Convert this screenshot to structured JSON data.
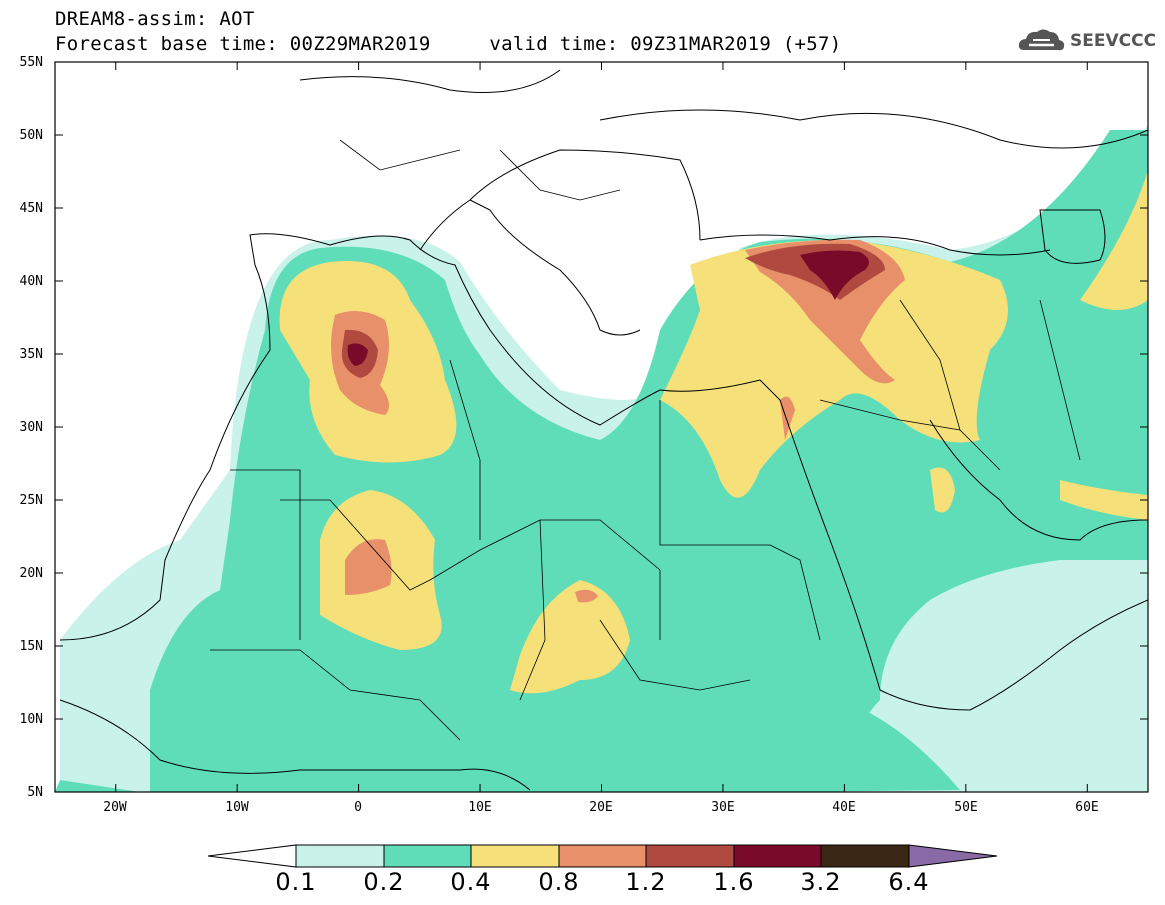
{
  "title": {
    "line1": "DREAM8-assim: AOT",
    "line2": "Forecast base time: 00Z29MAR2019     valid time: 09Z31MAR2019 (+57)"
  },
  "logo": {
    "text": "SEEVCCC",
    "icon": "cloud-logo-icon"
  },
  "axes": {
    "lat_labels": [
      "55N",
      "50N",
      "45N",
      "40N",
      "35N",
      "30N",
      "25N",
      "20N",
      "15N",
      "10N",
      "5N"
    ],
    "lon_labels": [
      "20W",
      "10W",
      "0",
      "10E",
      "20E",
      "30E",
      "40E",
      "50E",
      "60E"
    ]
  },
  "colorbar": {
    "levels": [
      "0.1",
      "0.2",
      "0.4",
      "0.8",
      "1.2",
      "1.6",
      "3.2",
      "6.4"
    ],
    "colors": [
      "#ffffff",
      "#c8f2ea",
      "#5fddb9",
      "#f5e07a",
      "#e8906a",
      "#b04a40",
      "#7a0a2a",
      "#3a2614",
      "#8a6aa6"
    ]
  },
  "chart_data": {
    "type": "heatmap",
    "variable": "AOT",
    "lat_range": [
      5,
      55
    ],
    "lon_range": [
      -25,
      65
    ]
  }
}
